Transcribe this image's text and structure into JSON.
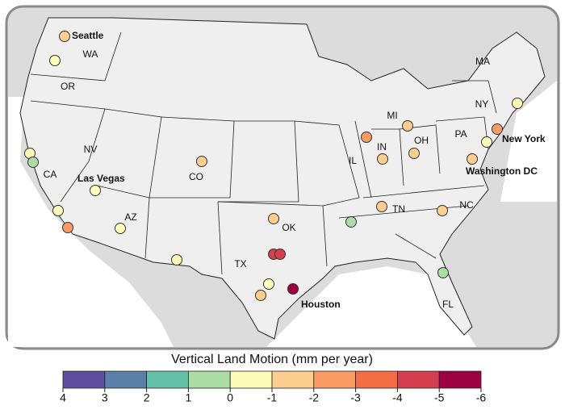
{
  "map": {
    "states": [
      "WA",
      "OR",
      "CA",
      "NV",
      "AZ",
      "CO",
      "TX",
      "OK",
      "IL",
      "IN",
      "MI",
      "OH",
      "TN",
      "NC",
      "PA",
      "NY",
      "MA",
      "FL"
    ],
    "cities": [
      "Seattle",
      "Las Vegas",
      "Houston",
      "New York",
      "Washington DC"
    ],
    "points": [
      -1.5,
      -0.5,
      -0.5,
      0.5,
      -0.5,
      -2.5,
      -0.5,
      -0.5,
      -1.5,
      -0.5,
      -1.5,
      -4.5,
      -4.5,
      -0.5,
      -1.5,
      -5.5,
      -2.5,
      -1.5,
      -1.5,
      -1.5,
      -1.5,
      0.5,
      -1.5,
      0.5,
      -2.5,
      -0.5,
      -0.5,
      -1.5
    ]
  },
  "colorbar": {
    "title": "Vertical Land Motion (mm per year)",
    "ticks": [
      4,
      3,
      2,
      1,
      0,
      -1,
      -2,
      -3,
      -4,
      -5,
      -6
    ],
    "colors": [
      "#5e4fa2",
      "#5a7fa9",
      "#63c1a9",
      "#abdda4",
      "#fdfcb8",
      "#fdce8e",
      "#f99b63",
      "#f46d43",
      "#d53e4f",
      "#9e0142"
    ]
  }
}
